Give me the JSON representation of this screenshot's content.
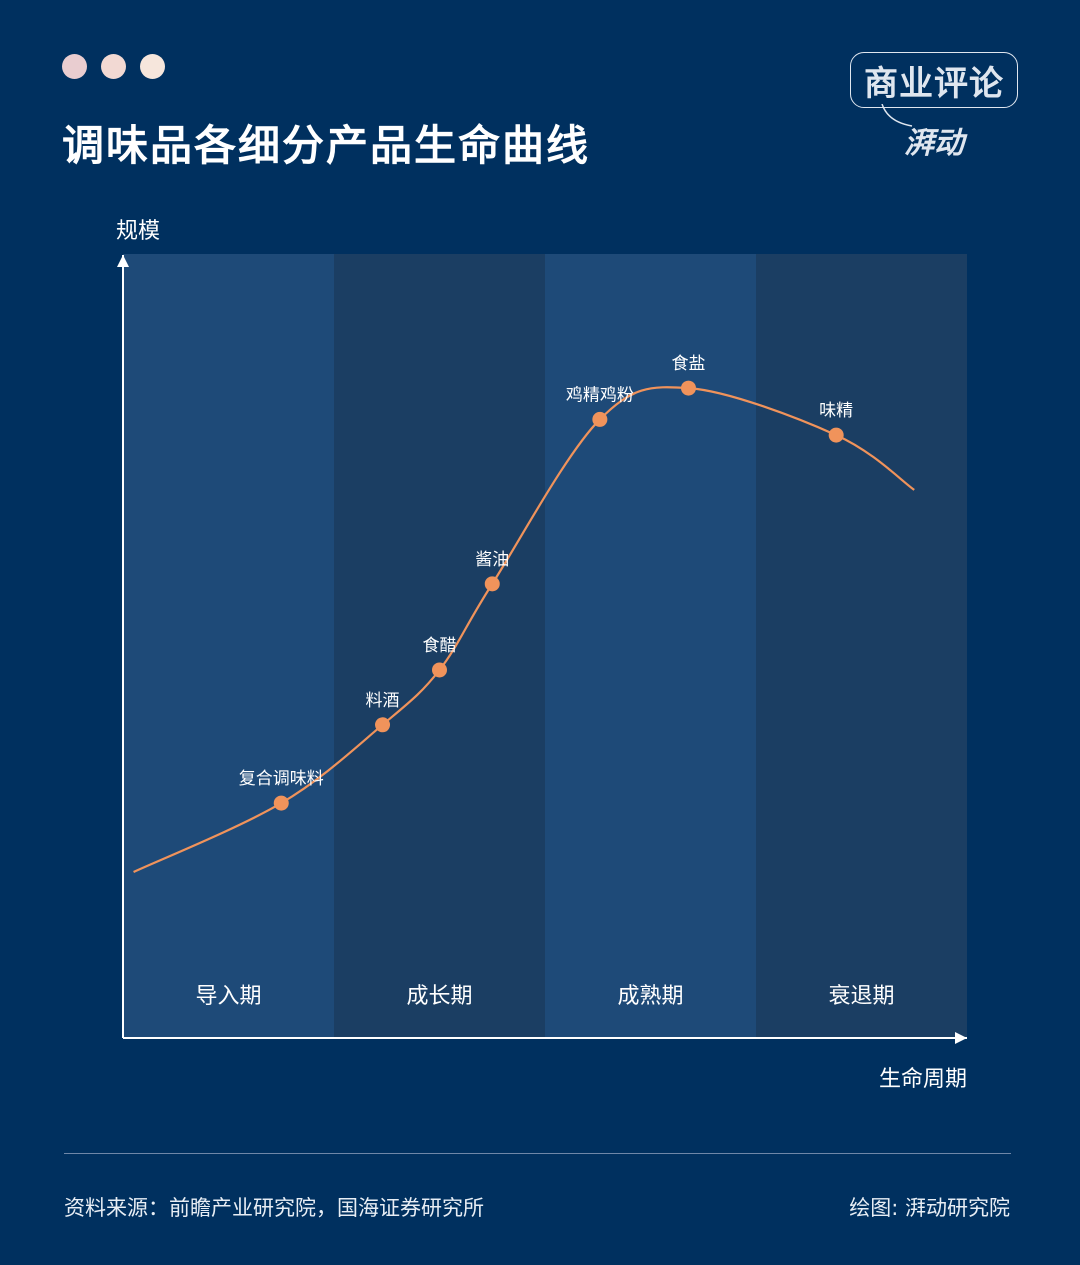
{
  "header": {
    "dots": [
      "#e9cdd0",
      "#f2d9d3",
      "#f6e6dc"
    ],
    "title": "调味品各细分产品生命曲线"
  },
  "logo": {
    "main": "商业评论",
    "sub": "湃动"
  },
  "chart_data": {
    "type": "line",
    "ylabel": "规模",
    "xlabel": "生命周期",
    "stages": [
      "导入期",
      "成长期",
      "成熟期",
      "衰退期"
    ],
    "stage_colors": [
      "#1e4a78",
      "#1b3e63",
      "#1e4a78",
      "#1b3e63"
    ],
    "curve_color": "#f0935b",
    "grid": false,
    "points": [
      {
        "label": "复合调味料",
        "stage_position": 0.75,
        "scale": 0.3
      },
      {
        "label": "料酒",
        "stage_position": 1.23,
        "scale": 0.4
      },
      {
        "label": "食醋",
        "stage_position": 1.5,
        "scale": 0.47
      },
      {
        "label": "酱油",
        "stage_position": 1.75,
        "scale": 0.58
      },
      {
        "label": "鸡精鸡粉",
        "stage_position": 2.26,
        "scale": 0.79
      },
      {
        "label": "食盐",
        "stage_position": 2.68,
        "scale": 0.83
      },
      {
        "label": "味精",
        "stage_position": 3.38,
        "scale": 0.77
      }
    ]
  },
  "footer": {
    "source": "资料来源：前瞻产业研究院，国海证券研究所",
    "credit": "绘图: 湃动研究院"
  }
}
